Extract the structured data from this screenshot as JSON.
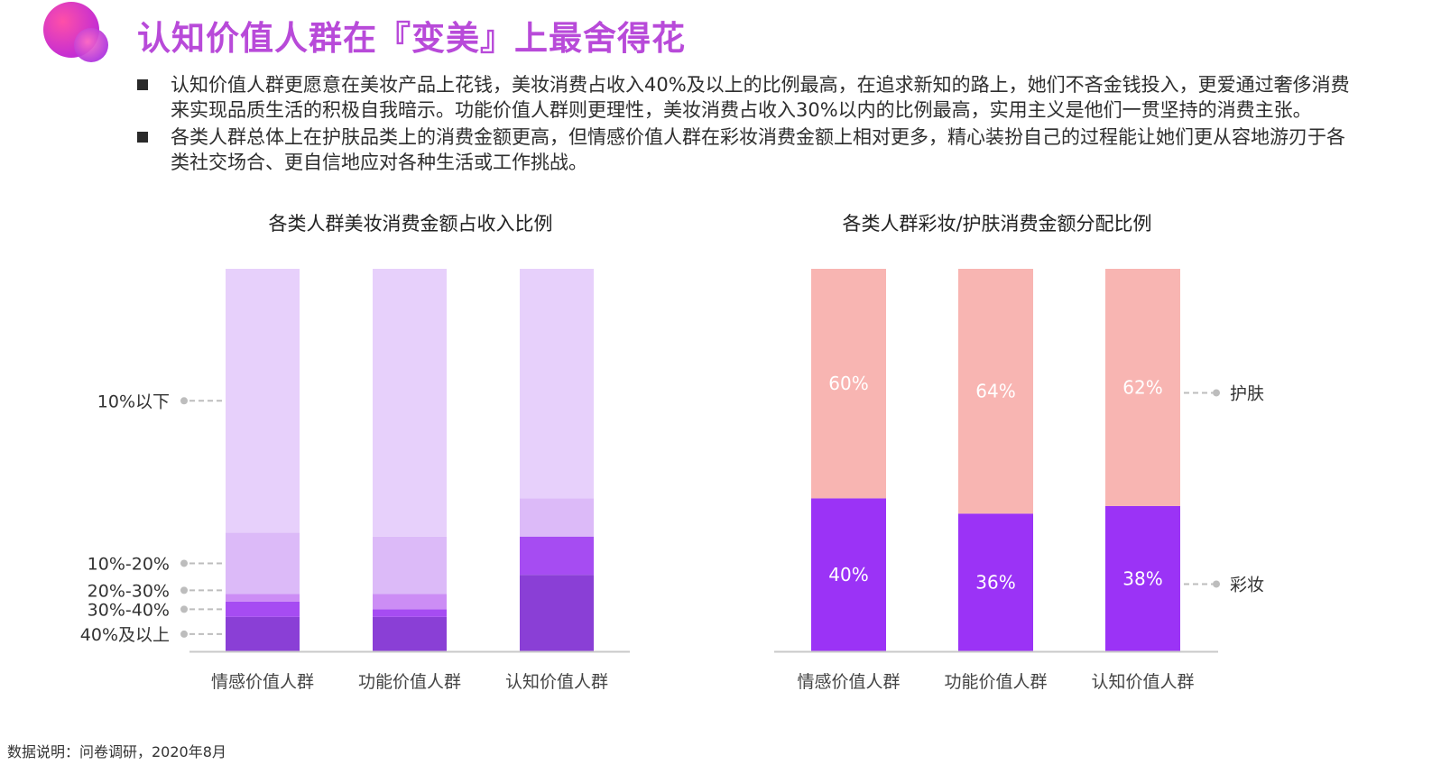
{
  "header": {
    "title": "认知价值人群在『变美』上最舍得花"
  },
  "bullets": [
    "认知价值人群更愿意在美妆产品上花钱，美妆消费占收入40%及以上的比例最高，在追求新知的路上，她们不吝金钱投入，更爱通过奢侈消费来实现品质生活的积极自我暗示。功能价值人群则更理性，美妆消费占收入30%以内的比例最高，实用主义是他们一贯坚持的消费主张。",
    "各类人群总体上在护肤品类上的消费金额更高，但情感价值人群在彩妆消费金额上相对更多，精心装扮自己的过程能让她们更从容地游刃于各类社交场合、更自信地应对各种生活或工作挑战。"
  ],
  "source_note": "数据说明：问卷调研，2020年8月",
  "chart_data": [
    {
      "type": "bar",
      "stacked": true,
      "title": "各类人群美妆消费金额占收入比例",
      "categories": [
        "情感价值人群",
        "功能价值人群",
        "认知价值人群"
      ],
      "ylim": [
        0,
        100
      ],
      "legend_position": "left",
      "series": [
        {
          "name": "40%及以上",
          "color": "#8a3fd6",
          "values": [
            9,
            9,
            20
          ]
        },
        {
          "name": "30%-40%",
          "color": "#a64cf2",
          "values": [
            4,
            2,
            10
          ]
        },
        {
          "name": "20%-30%",
          "color": "#cc8df5",
          "values": [
            2,
            4,
            0
          ]
        },
        {
          "name": "10%-20%",
          "color": "#dcbaf8",
          "values": [
            16,
            15,
            10
          ]
        },
        {
          "name": "10%以下",
          "color": "#e7d0fb",
          "values": [
            69,
            70,
            60
          ]
        }
      ]
    },
    {
      "type": "bar",
      "stacked": true,
      "title": "各类人群彩妆/护肤消费金额分配比例",
      "categories": [
        "情感价值人群",
        "功能价值人群",
        "认知价值人群"
      ],
      "ylim": [
        0,
        100
      ],
      "legend_position": "right",
      "series": [
        {
          "name": "彩妆",
          "color": "#9b33f6",
          "values": [
            40,
            36,
            38
          ],
          "labels": [
            "40%",
            "36%",
            "38%"
          ]
        },
        {
          "name": "护肤",
          "color": "#f8b5b2",
          "values": [
            60,
            64,
            62
          ],
          "labels": [
            "60%",
            "64%",
            "62%"
          ]
        }
      ]
    }
  ]
}
